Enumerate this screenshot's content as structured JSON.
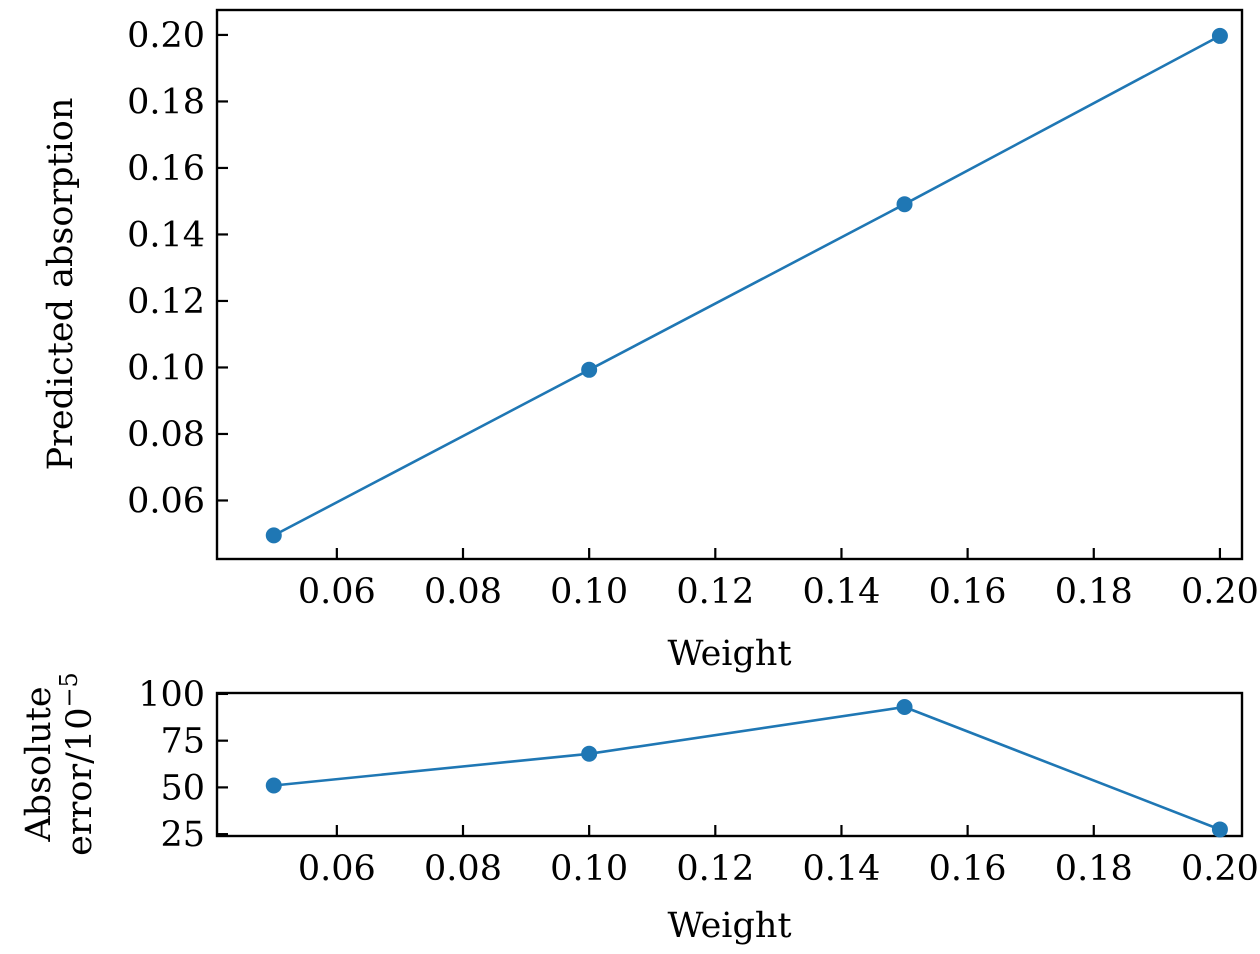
{
  "chart_data": [
    {
      "type": "line",
      "xlabel": "Weight",
      "ylabel": "Predicted absorption",
      "xlim": [
        0.041,
        0.2035
      ],
      "ylim": [
        0.0424,
        0.2075
      ],
      "xticks": [
        "0.06",
        "0.08",
        "0.10",
        "0.12",
        "0.14",
        "0.16",
        "0.18",
        "0.20"
      ],
      "yticks": [
        "0.06",
        "0.08",
        "0.10",
        "0.12",
        "0.14",
        "0.16",
        "0.18",
        "0.20"
      ],
      "series": [
        {
          "x": [
            0.05,
            0.1,
            0.15,
            0.2
          ],
          "y": [
            0.0495,
            0.0993,
            0.1491,
            0.1997
          ],
          "color": "#1f77b4",
          "marker": "circle"
        }
      ],
      "grid": false
    },
    {
      "type": "line",
      "xlabel": "Weight",
      "ylabel_lines": [
        "Absolute",
        "error/10"
      ],
      "ylabel_exponent": "−5",
      "xlim": [
        0.041,
        0.2035
      ],
      "ylim": [
        24,
        100.5
      ],
      "xticks": [
        "0.06",
        "0.08",
        "0.10",
        "0.12",
        "0.14",
        "0.16",
        "0.18",
        "0.20"
      ],
      "yticks": [
        "25",
        "50",
        "75",
        "100"
      ],
      "series": [
        {
          "x": [
            0.05,
            0.1,
            0.15,
            0.2
          ],
          "y": [
            51,
            68,
            93,
            27.5
          ],
          "color": "#1f77b4",
          "marker": "circle"
        }
      ],
      "grid": false
    }
  ]
}
